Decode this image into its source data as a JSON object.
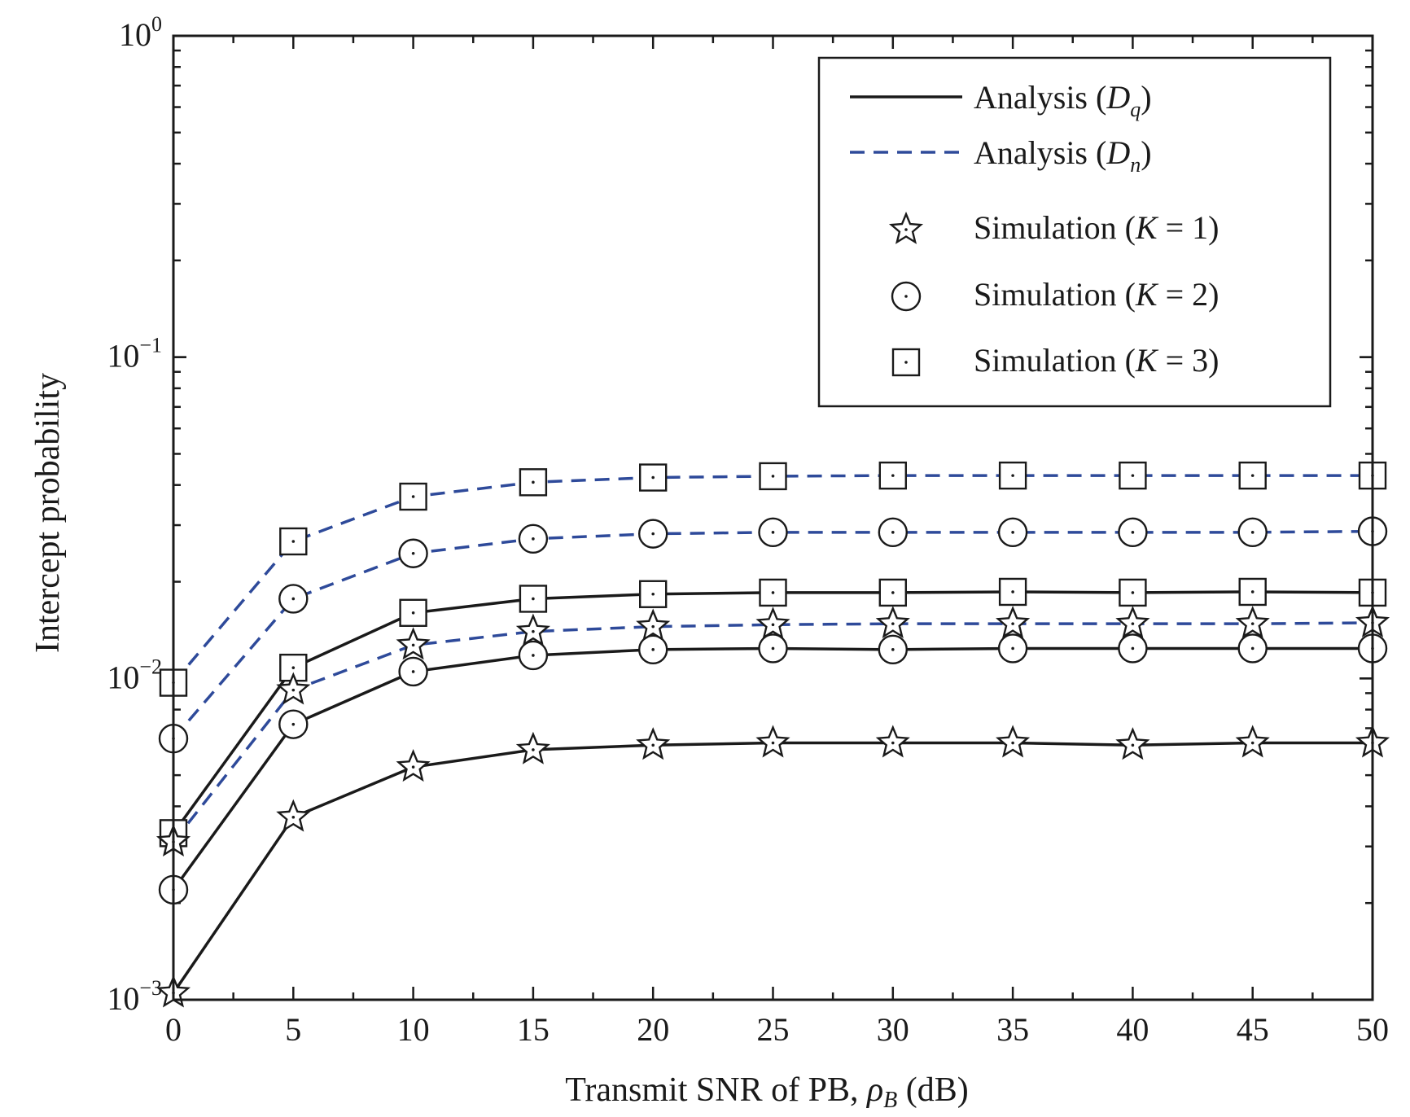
{
  "chart_data": {
    "type": "line",
    "title": "",
    "xlabel": {
      "main": "Transmit SNR of PB, ",
      "symbol": "ρ",
      "subscript": "B",
      "unit": " (dB)"
    },
    "ylabel": "Intercept probability",
    "x": [
      0,
      5,
      10,
      15,
      20,
      25,
      30,
      35,
      40,
      45,
      50
    ],
    "xlim": [
      0,
      50
    ],
    "ylim": [
      0.001,
      1
    ],
    "yscale": "log",
    "x_ticks": [
      "0",
      "5",
      "10",
      "15",
      "20",
      "25",
      "30",
      "35",
      "40",
      "45",
      "50"
    ],
    "y_ticks": [
      {
        "base": "10",
        "exp": "0",
        "value": 1
      },
      {
        "base": "10",
        "exp": "−1",
        "value": 0.1
      },
      {
        "base": "10",
        "exp": "−2",
        "value": 0.01
      },
      {
        "base": "10",
        "exp": "−3",
        "value": 0.001
      }
    ],
    "legend_position": "top-right",
    "legend": [
      {
        "kind": "line",
        "style": "solid",
        "prefix": "Analysis (",
        "sym": "D",
        "sub": "q",
        "suffix": ")"
      },
      {
        "kind": "line",
        "style": "dashed",
        "prefix": "Analysis (",
        "sym": "D",
        "sub": "n",
        "suffix": ")"
      },
      {
        "kind": "marker",
        "marker": "star",
        "prefix": "Simulation (",
        "sym": "K",
        "suffix": " = 1)"
      },
      {
        "kind": "marker",
        "marker": "circle",
        "prefix": "Simulation (",
        "sym": "K",
        "suffix": " = 2)"
      },
      {
        "kind": "marker",
        "marker": "square",
        "prefix": "Simulation (",
        "sym": "K",
        "suffix": " = 3)"
      }
    ],
    "colors": {
      "solid": "#1a1a1a",
      "dashed": "#2e4a9a"
    },
    "series": [
      {
        "method": "Dq",
        "K": 1,
        "style": "solid",
        "marker": "star",
        "values": [
          0.00105,
          0.0037,
          0.0053,
          0.006,
          0.0062,
          0.0063,
          0.0063,
          0.0063,
          0.0062,
          0.0063,
          0.0063
        ]
      },
      {
        "method": "Dq",
        "K": 2,
        "style": "solid",
        "marker": "circle",
        "values": [
          0.0022,
          0.0072,
          0.0105,
          0.0118,
          0.0123,
          0.0124,
          0.0123,
          0.0124,
          0.0124,
          0.0124,
          0.0124
        ]
      },
      {
        "method": "Dq",
        "K": 3,
        "style": "solid",
        "marker": "square",
        "values": [
          0.0033,
          0.0108,
          0.016,
          0.0177,
          0.0183,
          0.0185,
          0.0185,
          0.0186,
          0.0185,
          0.0186,
          0.0185
        ]
      },
      {
        "method": "Dn",
        "K": 1,
        "style": "dashed",
        "marker": "star",
        "values": [
          0.0031,
          0.0092,
          0.0127,
          0.014,
          0.0145,
          0.0147,
          0.0148,
          0.0148,
          0.0148,
          0.0148,
          0.0149
        ]
      },
      {
        "method": "Dn",
        "K": 2,
        "style": "dashed",
        "marker": "circle",
        "values": [
          0.0065,
          0.0177,
          0.0245,
          0.0272,
          0.0282,
          0.0285,
          0.0285,
          0.0285,
          0.0285,
          0.0285,
          0.0287
        ]
      },
      {
        "method": "Dn",
        "K": 3,
        "style": "dashed",
        "marker": "square",
        "values": [
          0.0097,
          0.0267,
          0.0368,
          0.0408,
          0.0422,
          0.0426,
          0.0428,
          0.0428,
          0.0428,
          0.0428,
          0.0428
        ]
      }
    ]
  }
}
